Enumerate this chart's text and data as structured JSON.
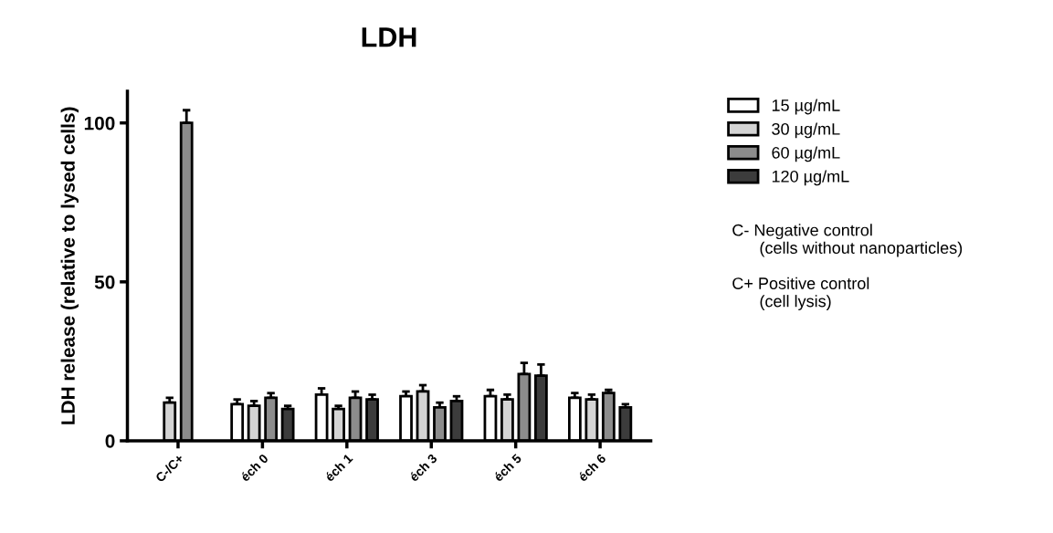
{
  "chart_data": {
    "type": "bar",
    "title": "LDH",
    "ylabel": "LDH release (relative to lysed cells)",
    "categories": [
      "C-/C+",
      "éch 0",
      "éch 1",
      "éch 3",
      "éch 5",
      "éch 6"
    ],
    "series": [
      {
        "name": "15 µg/mL",
        "color": "#ffffff",
        "values": [
          null,
          11.5,
          14.5,
          14,
          14,
          13.5
        ],
        "errors": [
          null,
          1.5,
          2,
          1.5,
          2,
          1.5
        ]
      },
      {
        "name": "30 µg/mL",
        "color": "#d4d4d4",
        "values": [
          12,
          11,
          10,
          15.5,
          13,
          13
        ],
        "errors": [
          1.5,
          1.5,
          1,
          2,
          1.5,
          1.5
        ]
      },
      {
        "name": "60 µg/mL",
        "color": "#8c8c8c",
        "values": [
          100,
          13.5,
          13.5,
          10.5,
          21,
          15
        ],
        "errors": [
          4,
          1.5,
          2,
          1.5,
          3.5,
          1
        ]
      },
      {
        "name": "120 µg/mL",
        "color": "#3c3c3c",
        "values": [
          null,
          10,
          13,
          12.5,
          20.5,
          10.5
        ],
        "errors": [
          null,
          1,
          1.5,
          1.5,
          3.5,
          1
        ]
      }
    ],
    "ylim": [
      0,
      110
    ],
    "yticks": [
      0,
      50,
      100
    ],
    "grid": false,
    "legend": "right",
    "annotations": [
      "C- Negative control\n      (cells without nanoparticles)",
      "C+ Positive control\n      (cell lysis)"
    ]
  }
}
